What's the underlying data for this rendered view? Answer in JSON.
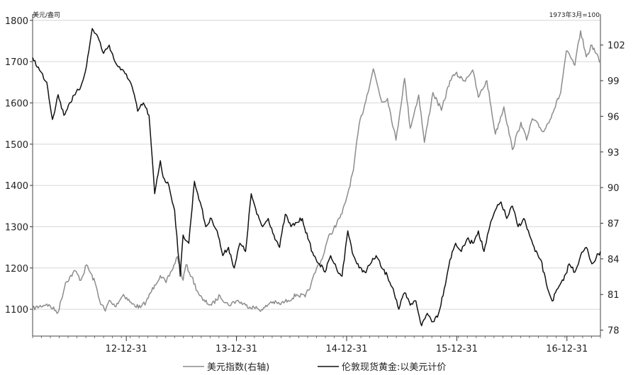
{
  "chart_data": {
    "type": "line",
    "title": "",
    "left_axis": {
      "unit": "美元/盎司",
      "ticks": [
        1100,
        1200,
        1300,
        1400,
        1500,
        1600,
        1700,
        1800
      ],
      "ylim": [
        1035,
        1815
      ]
    },
    "right_axis": {
      "unit": "1973年3月=100",
      "ticks": [
        78,
        81,
        84,
        87,
        90,
        93,
        96,
        99,
        102
      ],
      "ylim": [
        77.5,
        104.6
      ]
    },
    "x_ticks": [
      "12-12-31",
      "13-12-31",
      "14-12-31",
      "15-12-31",
      "16-12-31"
    ],
    "grid": true,
    "legend_position": "bottom",
    "series": [
      {
        "name": "美元指数(右轴)",
        "axis": "right",
        "color": "#8c8c8c",
        "x": [
          0.0,
          0.025,
          0.045,
          0.058,
          0.075,
          0.085,
          0.095,
          0.11,
          0.118,
          0.128,
          0.135,
          0.145,
          0.16,
          0.175,
          0.19,
          0.2,
          0.215,
          0.225,
          0.235,
          0.245,
          0.255,
          0.265,
          0.27,
          0.28,
          0.29,
          0.3,
          0.315,
          0.33,
          0.345,
          0.36,
          0.375,
          0.39,
          0.405,
          0.42,
          0.435,
          0.45,
          0.465,
          0.48,
          0.49,
          0.5,
          0.51,
          0.52,
          0.53,
          0.545,
          0.555,
          0.565,
          0.575,
          0.585,
          0.6,
          0.615,
          0.625,
          0.64,
          0.655,
          0.665,
          0.68,
          0.69,
          0.705,
          0.72,
          0.735,
          0.745,
          0.76,
          0.775,
          0.785,
          0.8,
          0.815,
          0.83,
          0.845,
          0.86,
          0.87,
          0.88,
          0.9,
          0.915,
          0.93,
          0.94,
          0.955,
          0.965,
          0.975,
          0.985,
          1.0
        ],
        "values": [
          79.8,
          80.2,
          79.5,
          82.0,
          83.0,
          82.2,
          83.5,
          82.0,
          80.5,
          79.6,
          80.5,
          80.0,
          81.0,
          80.2,
          79.9,
          80.4,
          81.8,
          82.6,
          82.0,
          83.0,
          84.2,
          82.2,
          83.5,
          82.5,
          81.3,
          80.5,
          80.1,
          80.9,
          80.1,
          80.5,
          80.1,
          79.9,
          79.7,
          80.4,
          80.2,
          80.5,
          81.0,
          80.8,
          81.8,
          83.2,
          84.0,
          85.7,
          86.5,
          87.8,
          89.5,
          91.5,
          95.3,
          97.0,
          100.0,
          97.2,
          97.5,
          94.0,
          99.2,
          95.0,
          97.8,
          93.8,
          98.0,
          96.5,
          99.0,
          99.6,
          99.0,
          99.9,
          97.6,
          99.0,
          94.5,
          96.8,
          93.2,
          95.5,
          94.0,
          95.8,
          94.7,
          96.2,
          98.0,
          101.5,
          100.3,
          103.2,
          101.0,
          102.0,
          100.5
        ]
      },
      {
        "name": "伦敦现货黄金:以美元计价",
        "axis": "left",
        "color": "#111111",
        "x": [
          0.0,
          0.012,
          0.025,
          0.035,
          0.045,
          0.055,
          0.065,
          0.075,
          0.085,
          0.095,
          0.105,
          0.115,
          0.125,
          0.135,
          0.145,
          0.155,
          0.165,
          0.175,
          0.185,
          0.195,
          0.205,
          0.215,
          0.225,
          0.23,
          0.24,
          0.25,
          0.26,
          0.265,
          0.275,
          0.285,
          0.295,
          0.305,
          0.315,
          0.325,
          0.335,
          0.345,
          0.355,
          0.365,
          0.375,
          0.385,
          0.395,
          0.405,
          0.415,
          0.425,
          0.435,
          0.445,
          0.455,
          0.465,
          0.475,
          0.485,
          0.495,
          0.505,
          0.515,
          0.525,
          0.535,
          0.545,
          0.555,
          0.565,
          0.575,
          0.585,
          0.595,
          0.605,
          0.615,
          0.625,
          0.635,
          0.645,
          0.655,
          0.665,
          0.675,
          0.685,
          0.695,
          0.705,
          0.715,
          0.725,
          0.735,
          0.745,
          0.755,
          0.765,
          0.775,
          0.785,
          0.795,
          0.805,
          0.815,
          0.825,
          0.835,
          0.845,
          0.855,
          0.865,
          0.875,
          0.885,
          0.895,
          0.905,
          0.915,
          0.925,
          0.935,
          0.945,
          0.955,
          0.965,
          0.975,
          0.985,
          1.0
        ],
        "values": [
          1710,
          1680,
          1650,
          1560,
          1620,
          1570,
          1600,
          1620,
          1640,
          1690,
          1780,
          1760,
          1720,
          1740,
          1700,
          1680,
          1670,
          1640,
          1580,
          1600,
          1570,
          1380,
          1460,
          1420,
          1400,
          1340,
          1180,
          1280,
          1260,
          1410,
          1360,
          1300,
          1320,
          1290,
          1230,
          1250,
          1200,
          1260,
          1240,
          1380,
          1330,
          1300,
          1320,
          1280,
          1250,
          1330,
          1300,
          1310,
          1320,
          1270,
          1230,
          1210,
          1190,
          1230,
          1200,
          1180,
          1290,
          1230,
          1200,
          1190,
          1210,
          1230,
          1200,
          1180,
          1150,
          1100,
          1140,
          1110,
          1120,
          1060,
          1090,
          1070,
          1090,
          1150,
          1220,
          1260,
          1240,
          1270,
          1260,
          1290,
          1240,
          1300,
          1340,
          1360,
          1320,
          1350,
          1300,
          1320,
          1280,
          1240,
          1220,
          1160,
          1120,
          1150,
          1170,
          1210,
          1190,
          1230,
          1250,
          1210,
          1240
        ]
      }
    ]
  }
}
